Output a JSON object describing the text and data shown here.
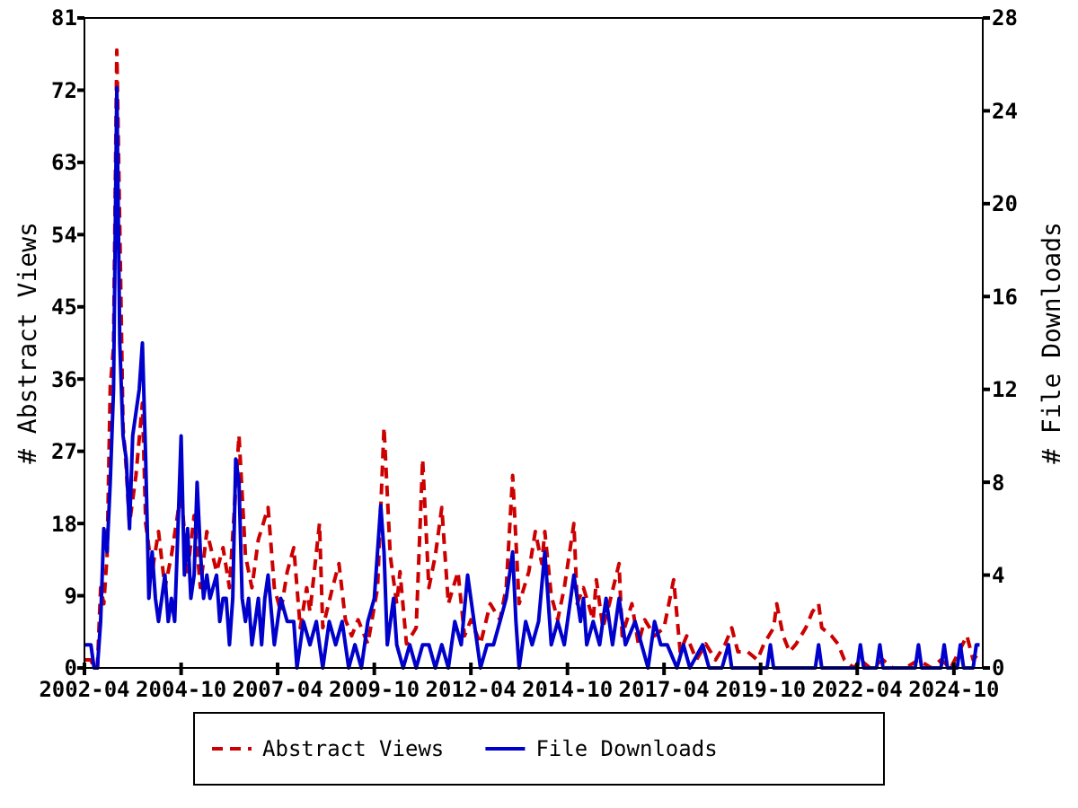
{
  "chart_data": {
    "type": "line",
    "ylabel": "# Abstract Views",
    "y2label": "# File Downloads",
    "xlim": [
      "2002-04",
      "2025-07"
    ],
    "xticks": [
      "2002-04",
      "2004-10",
      "2007-04",
      "2009-10",
      "2012-04",
      "2014-10",
      "2017-04",
      "2019-10",
      "2022-04",
      "2024-10"
    ],
    "ylim": [
      0,
      81
    ],
    "yticks": [
      0,
      9,
      18,
      27,
      36,
      45,
      54,
      63,
      72,
      81
    ],
    "y2lim": [
      0,
      28
    ],
    "y2ticks": [
      0,
      4,
      8,
      12,
      16,
      20,
      24,
      28
    ],
    "grid": false,
    "legend": "bottom",
    "marker": "none",
    "series": [
      {
        "name": "Abstract Views",
        "color": "#cc0000",
        "line_style": "dashed",
        "x": [
          "2002-04",
          "2002-06",
          "2002-07",
          "2002-08",
          "2002-09",
          "2002-10",
          "2002-11",
          "2002-12",
          "2003-01",
          "2003-02",
          "2003-03",
          "2003-04",
          "2003-05",
          "2003-06",
          "2003-08",
          "2003-10",
          "2003-11",
          "2004-01",
          "2004-03",
          "2004-05",
          "2004-07",
          "2004-10",
          "2004-12",
          "2005-02",
          "2005-04",
          "2005-06",
          "2005-09",
          "2005-11",
          "2006-01",
          "2006-04",
          "2006-06",
          "2006-08",
          "2006-10",
          "2007-01",
          "2007-03",
          "2007-05",
          "2007-07",
          "2007-09",
          "2007-11",
          "2008-01",
          "2008-02",
          "2008-05",
          "2008-06",
          "2008-09",
          "2008-11",
          "2009-01",
          "2009-03",
          "2009-05",
          "2009-08",
          "2009-11",
          "2010-01",
          "2010-03",
          "2010-05",
          "2010-06",
          "2010-08",
          "2010-11",
          "2011-01",
          "2011-03",
          "2011-05",
          "2011-07",
          "2011-09",
          "2011-12",
          "2012-02",
          "2012-04",
          "2012-07",
          "2012-10",
          "2013-01",
          "2013-03",
          "2013-05",
          "2013-07",
          "2013-10",
          "2013-12",
          "2014-02",
          "2014-03",
          "2014-05",
          "2014-07",
          "2014-09",
          "2014-12",
          "2015-01",
          "2015-03",
          "2015-06",
          "2015-07",
          "2015-09",
          "2015-11",
          "2016-02",
          "2016-03",
          "2016-06",
          "2016-08",
          "2016-10",
          "2017-01",
          "2017-04",
          "2017-07",
          "2017-09",
          "2017-11",
          "2018-02",
          "2018-05",
          "2018-08",
          "2018-11",
          "2019-01",
          "2019-03",
          "2019-06",
          "2019-09",
          "2019-11",
          "2020-02",
          "2020-03",
          "2020-05",
          "2020-07",
          "2020-09",
          "2020-12",
          "2021-02",
          "2021-04",
          "2021-05",
          "2021-08",
          "2021-10",
          "2021-12",
          "2022-03",
          "2022-05",
          "2022-08",
          "2022-12",
          "2023-03",
          "2023-07",
          "2023-11",
          "2024-03",
          "2024-06",
          "2024-09",
          "2025-02",
          "2025-04",
          "2025-06"
        ],
        "values": [
          1,
          1,
          0,
          0,
          10,
          8,
          14,
          35,
          40,
          77,
          55,
          30,
          25,
          18,
          24,
          33,
          18,
          12,
          17,
          10,
          14,
          22,
          12,
          19,
          10,
          17,
          12,
          15,
          10,
          29,
          14,
          10,
          16,
          20,
          10,
          7,
          12,
          15,
          5,
          10,
          7,
          18,
          5,
          10,
          13,
          6,
          4,
          6,
          3,
          10,
          30,
          14,
          8,
          12,
          3,
          5,
          26,
          10,
          14,
          20,
          8,
          12,
          4,
          6,
          3,
          8,
          6,
          10,
          24,
          8,
          12,
          17,
          13,
          17,
          9,
          6,
          10,
          18,
          8,
          10,
          6,
          11,
          5,
          8,
          13,
          4,
          8,
          3,
          6,
          4,
          5,
          11,
          2,
          4,
          1,
          3,
          1,
          3,
          5,
          2,
          2,
          1,
          3,
          5,
          8,
          4,
          2,
          3,
          5,
          7,
          8,
          5,
          4,
          3,
          1,
          0,
          1,
          0,
          1,
          0,
          0,
          1,
          0,
          1,
          0,
          4,
          1,
          2
        ]
      },
      {
        "name": "File Downloads",
        "color": "#0000cc",
        "line_style": "solid",
        "axis": "y2",
        "x": [
          "2002-04",
          "2002-06",
          "2002-07",
          "2002-08",
          "2002-09",
          "2002-10",
          "2002-11",
          "2002-12",
          "2003-01",
          "2003-02",
          "2003-03",
          "2003-04",
          "2003-05",
          "2003-06",
          "2003-07",
          "2003-08",
          "2003-09",
          "2003-10",
          "2003-11",
          "2003-12",
          "2004-01",
          "2004-02",
          "2004-03",
          "2004-04",
          "2004-05",
          "2004-06",
          "2004-07",
          "2004-08",
          "2004-09",
          "2004-10",
          "2004-11",
          "2004-12",
          "2005-01",
          "2005-02",
          "2005-03",
          "2005-04",
          "2005-05",
          "2005-06",
          "2005-07",
          "2005-09",
          "2005-10",
          "2005-11",
          "2005-12",
          "2006-01",
          "2006-02",
          "2006-03",
          "2006-04",
          "2006-05",
          "2006-06",
          "2006-07",
          "2006-08",
          "2006-09",
          "2006-10",
          "2006-11",
          "2006-12",
          "2007-01",
          "2007-03",
          "2007-05",
          "2007-07",
          "2007-09",
          "2007-10",
          "2007-12",
          "2008-02",
          "2008-04",
          "2008-06",
          "2008-08",
          "2008-10",
          "2008-12",
          "2009-02",
          "2009-04",
          "2009-06",
          "2009-08",
          "2009-10",
          "2009-12",
          "2010-01",
          "2010-02",
          "2010-04",
          "2010-05",
          "2010-07",
          "2010-09",
          "2010-11",
          "2011-01",
          "2011-03",
          "2011-05",
          "2011-07",
          "2011-09",
          "2011-11",
          "2012-01",
          "2012-03",
          "2012-05",
          "2012-07",
          "2012-09",
          "2012-11",
          "2013-01",
          "2013-03",
          "2013-05",
          "2013-06",
          "2013-07",
          "2013-09",
          "2013-11",
          "2014-01",
          "2014-03",
          "2014-05",
          "2014-07",
          "2014-09",
          "2014-12",
          "2015-02",
          "2015-03",
          "2015-04",
          "2015-06",
          "2015-08",
          "2015-10",
          "2015-12",
          "2016-02",
          "2016-04",
          "2016-07",
          "2016-09",
          "2016-11",
          "2017-01",
          "2017-03",
          "2017-05",
          "2017-08",
          "2017-10",
          "2017-12",
          "2018-04",
          "2018-06",
          "2018-10",
          "2018-12",
          "2019-01",
          "2019-12",
          "2020-01",
          "2020-02",
          "2021-03",
          "2021-04",
          "2021-05",
          "2022-04",
          "2022-05",
          "2022-06",
          "2022-10",
          "2022-11",
          "2022-12",
          "2023-10",
          "2023-11",
          "2023-12",
          "2024-06",
          "2024-07",
          "2024-08",
          "2024-11",
          "2024-12",
          "2025-01",
          "2025-04",
          "2025-05",
          "2025-06"
        ],
        "values": [
          1,
          1,
          0,
          0,
          2,
          6,
          5,
          8,
          12,
          25,
          14,
          10,
          9,
          6,
          10,
          11,
          12,
          14,
          9,
          3,
          5,
          3,
          2,
          3,
          4,
          2,
          3,
          2,
          6,
          10,
          4,
          6,
          3,
          4,
          8,
          5,
          3,
          4,
          3,
          4,
          2,
          3,
          3,
          1,
          3,
          9,
          8,
          3,
          2,
          3,
          1,
          2,
          3,
          1,
          3,
          4,
          1,
          3,
          2,
          2,
          0,
          2,
          1,
          2,
          0,
          2,
          1,
          2,
          0,
          1,
          0,
          2,
          3,
          7,
          5,
          1,
          3,
          1,
          0,
          1,
          0,
          1,
          1,
          0,
          1,
          0,
          2,
          1,
          4,
          2,
          0,
          1,
          1,
          2,
          3,
          5,
          2,
          0,
          2,
          1,
          2,
          5,
          1,
          2,
          1,
          4,
          2,
          3,
          1,
          2,
          1,
          3,
          1,
          3,
          1,
          2,
          1,
          0,
          2,
          1,
          1,
          0,
          1,
          0,
          1,
          0,
          0,
          1,
          0,
          0,
          1,
          0,
          0,
          1,
          0,
          0,
          1,
          0,
          0,
          1,
          0,
          0,
          1,
          0,
          0,
          1,
          0,
          0,
          1,
          0,
          0,
          1,
          1
        ]
      }
    ]
  }
}
